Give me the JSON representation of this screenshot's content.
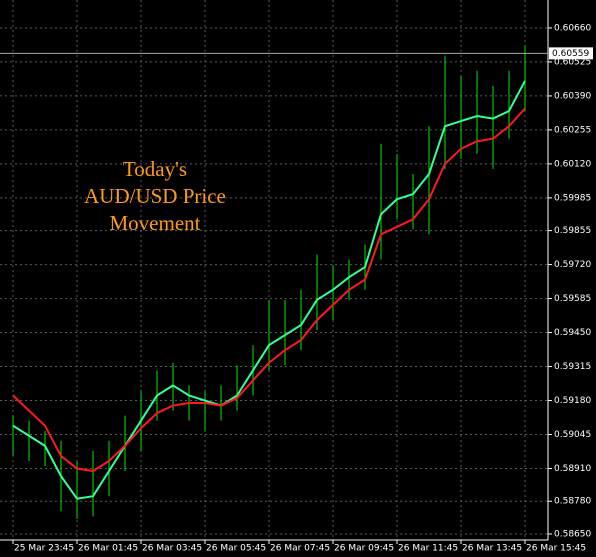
{
  "chart_data": {
    "type": "line",
    "annotation": [
      "Today's",
      "AUD/USD Price",
      "Movement"
    ],
    "annotation_color": "#ff9a1a",
    "categories": [
      "25 Mar 23:45",
      null,
      null,
      null,
      "26 Mar 01:45",
      null,
      null,
      null,
      "26 Mar 03:45",
      null,
      null,
      null,
      "26 Mar 05:45",
      null,
      null,
      null,
      "26 Mar 07:45",
      null,
      null,
      null,
      "26 Mar 09:45",
      null,
      null,
      null,
      "26 Mar 11:45",
      null,
      null,
      null,
      "26 Mar 13:45",
      null,
      null,
      null,
      "26 Mar 15:45"
    ],
    "bars": {
      "color": "#00e600",
      "high": [
        0.5912,
        0.591,
        0.5906,
        0.5902,
        0.5894,
        0.5898,
        0.5902,
        0.5912,
        0.5922,
        0.593,
        0.5933,
        0.5924,
        0.5922,
        0.5924,
        0.5932,
        0.594,
        0.5958,
        0.5958,
        0.5962,
        0.5976,
        0.5972,
        0.5974,
        0.598,
        0.602,
        0.6016,
        0.6008,
        0.6027,
        0.6055,
        0.6047,
        0.6049,
        0.6043,
        0.6049,
        0.6059
      ],
      "low": [
        0.5896,
        0.5894,
        0.5892,
        0.5874,
        0.5871,
        0.5872,
        0.588,
        0.589,
        0.5898,
        0.591,
        0.5914,
        0.591,
        0.5906,
        0.591,
        0.5914,
        0.592,
        0.593,
        0.5932,
        0.5938,
        0.5946,
        0.595,
        0.5958,
        0.5962,
        0.5974,
        0.599,
        0.5986,
        0.5984,
        0.601,
        0.6014,
        0.6016,
        0.601,
        0.6022,
        0.6033
      ]
    },
    "series": [
      {
        "color": "#33ff99",
        "values": [
          0.5908,
          0.5904,
          0.59,
          0.5888,
          0.5879,
          0.588,
          0.589,
          0.59,
          0.591,
          0.592,
          0.5924,
          0.592,
          0.5918,
          0.5916,
          0.592,
          0.593,
          0.594,
          0.5944,
          0.5948,
          0.5958,
          0.5962,
          0.5967,
          0.5971,
          0.5992,
          0.5998,
          0.6,
          0.6008,
          0.6027,
          0.6029,
          0.6031,
          0.603,
          0.6033,
          0.6045
        ]
      },
      {
        "color": "#ff1a1a",
        "values": [
          0.592,
          0.5914,
          0.5908,
          0.5896,
          0.5891,
          0.589,
          0.5894,
          0.59,
          0.5907,
          0.5913,
          0.5916,
          0.5917,
          0.5917,
          0.5916,
          0.5919,
          0.5926,
          0.5933,
          0.5938,
          0.5942,
          0.595,
          0.5956,
          0.5962,
          0.5966,
          0.5984,
          0.5987,
          0.599,
          0.5998,
          0.6012,
          0.6018,
          0.6021,
          0.6022,
          0.6027,
          0.6034
        ]
      }
    ],
    "current_price": 0.60559,
    "ylim": [
      0.58626,
      0.60771
    ],
    "yticks": [
      {
        "value": 0.6066,
        "label": "0.60660"
      },
      0.60525,
      {
        "value": 0.6039,
        "label": "0.60390"
      },
      0.60255,
      {
        "value": 0.6012,
        "label": "0.60120"
      },
      0.59985,
      0.59855,
      {
        "value": 0.5972,
        "label": "0.59720"
      },
      0.59585,
      {
        "value": 0.5945,
        "label": "0.59450"
      },
      0.59315,
      {
        "value": 0.5918,
        "label": "0.59180"
      },
      0.59045,
      {
        "value": 0.5891,
        "label": "0.58910"
      },
      {
        "value": 0.5878,
        "label": "0.58780"
      },
      {
        "value": 0.5865,
        "label": "0.58650"
      }
    ],
    "grid": true
  }
}
